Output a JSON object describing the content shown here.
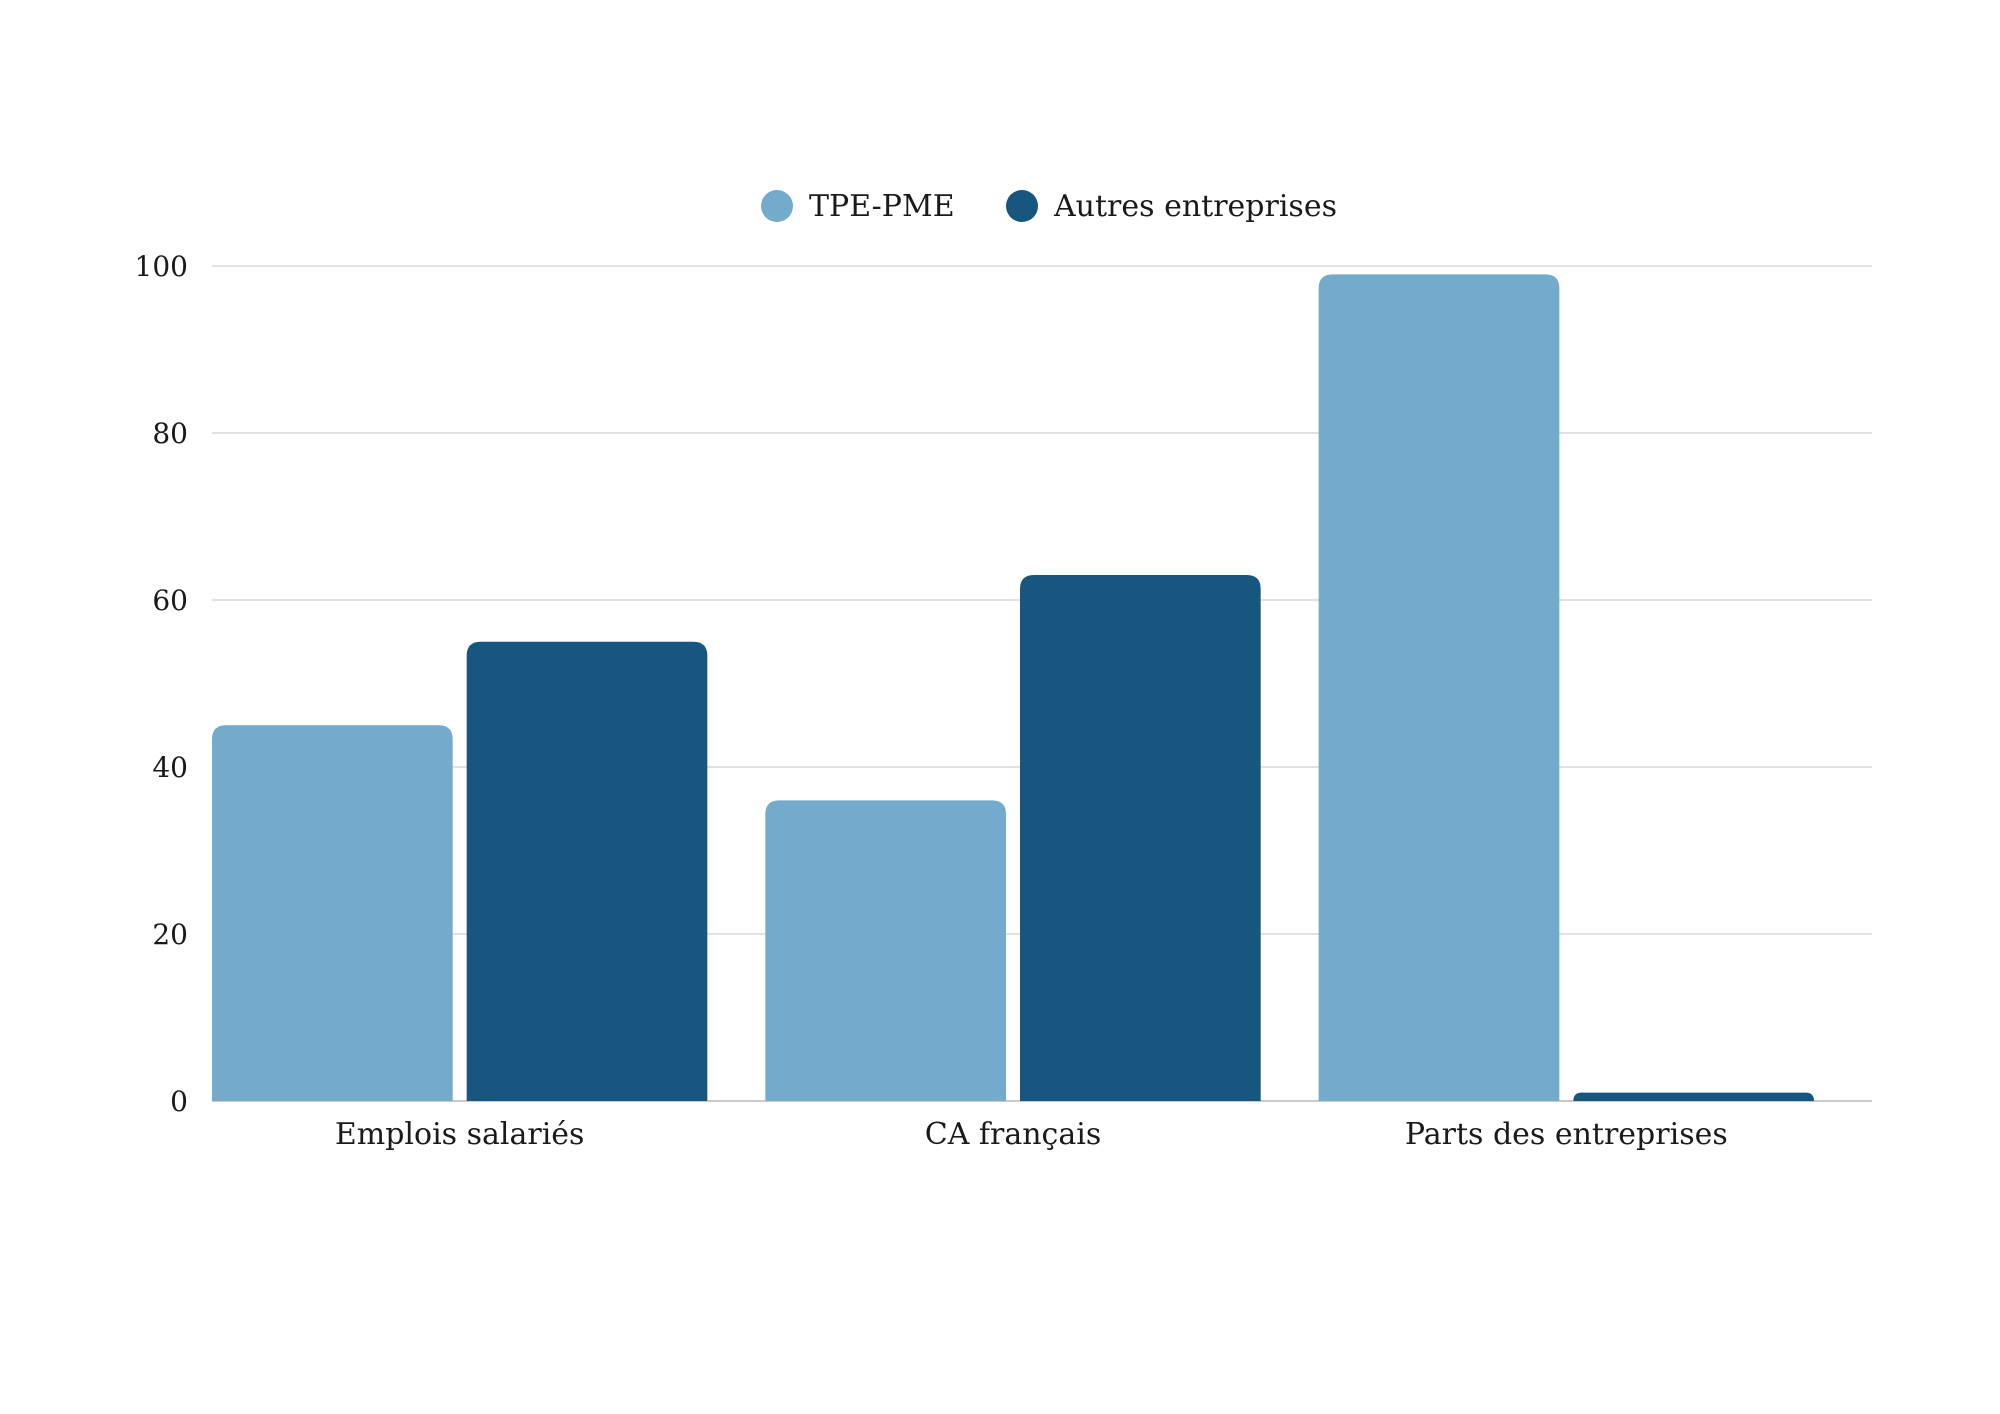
{
  "chart_data": {
    "type": "bar",
    "title": "",
    "xlabel": "",
    "ylabel": "",
    "categories": [
      "Emplois salariés",
      "CA français",
      "Parts des entreprises"
    ],
    "series": [
      {
        "name": "TPE-PME",
        "values": [
          45,
          36,
          99
        ],
        "color": "#74aacc"
      },
      {
        "name": "Autres entreprises",
        "values": [
          55,
          63,
          1
        ],
        "color": "#16567f"
      }
    ],
    "ylim": [
      0,
      100
    ],
    "yticks": [
      0,
      20,
      40,
      60,
      80,
      100
    ],
    "grid": true,
    "legend_position": "top-center"
  }
}
